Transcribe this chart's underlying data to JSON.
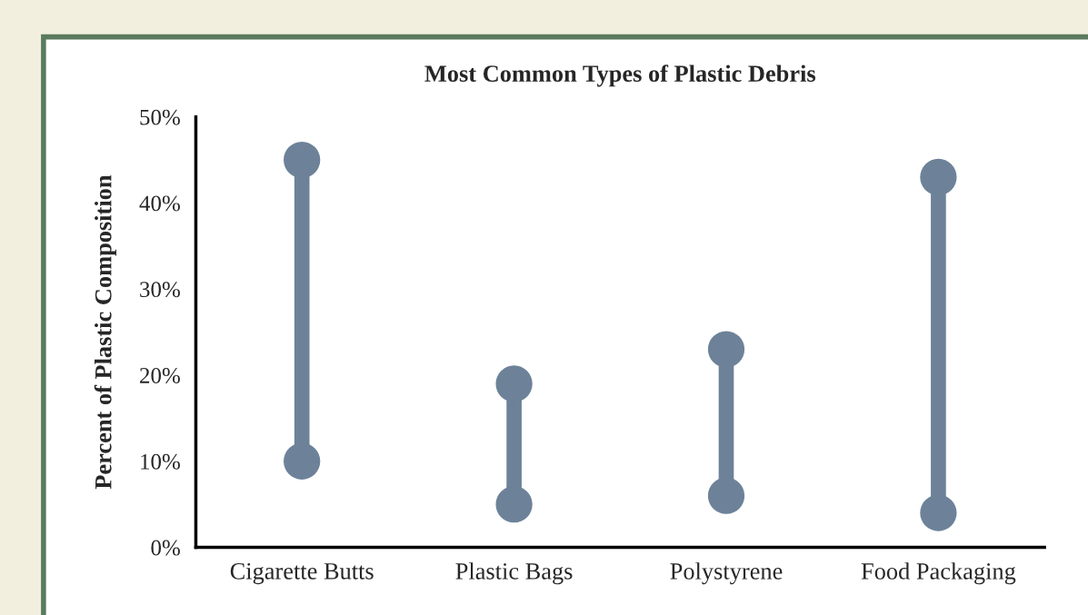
{
  "chart_data": {
    "type": "scatter",
    "title": "Most Common Types of Plastic Debris",
    "ylabel": "Percent of Plastic Composition",
    "categories": [
      "Cigarette Butts",
      "Plastic Bags",
      "Polystyrene",
      "Food Packaging"
    ],
    "series": [
      {
        "color": "#6d8299",
        "values": [
          10,
          5,
          6,
          4
        ]
      },
      {
        "color": "#6d8299",
        "values": [
          45,
          19,
          23,
          43
        ]
      }
    ],
    "marker": "circle",
    "ylim": [
      0,
      50
    ],
    "yticks": [
      {
        "value": 0,
        "label": "0%"
      },
      {
        "value": 10,
        "label": "10%"
      },
      {
        "value": 20,
        "label": "20%"
      },
      {
        "value": 30,
        "label": "30%"
      },
      {
        "value": 40,
        "label": "40%"
      },
      {
        "value": 50,
        "label": "50%"
      }
    ]
  }
}
